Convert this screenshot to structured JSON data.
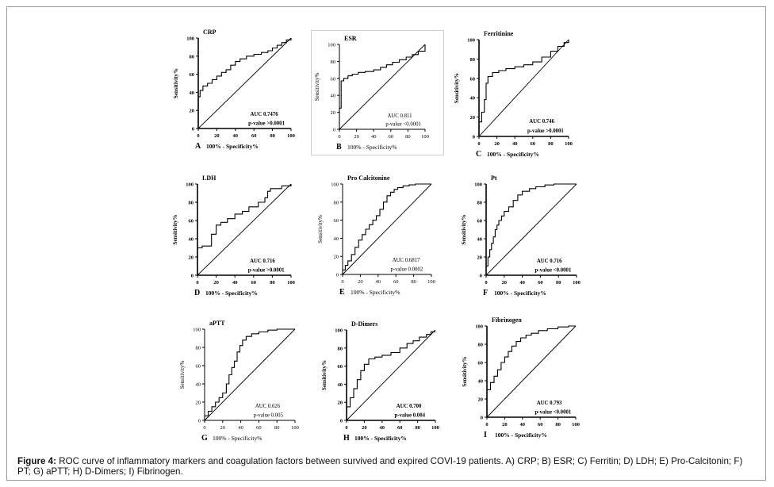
{
  "caption": {
    "label": "Figure 4:",
    "text": "ROC curve of inflammatory markers and coagulation factors between survived and expired COVI-19 patients. A) CRP; B) ESR; C) Ferritin; D) LDH; E) Pro-Calcitonin; F) PT; G) aPTT; H) D-Dimers; I) Fibrinogen."
  },
  "chart_data": [
    {
      "type": "line",
      "letter": "A",
      "title": "CRP",
      "xlabel": "100% - Specificity%",
      "ylabel": "Sensitivity%",
      "auc_text": "AUC 0.7476",
      "p_text": "p-value >0.0001",
      "xlim": [
        0,
        100
      ],
      "ylim": [
        0,
        100
      ],
      "ticks": [
        "0",
        "20",
        "40",
        "60",
        "80",
        "100"
      ],
      "x": [
        0,
        0,
        2,
        2,
        5,
        5,
        10,
        10,
        15,
        15,
        20,
        20,
        25,
        25,
        30,
        30,
        35,
        35,
        40,
        40,
        45,
        45,
        52,
        52,
        60,
        60,
        68,
        68,
        75,
        75,
        80,
        80,
        85,
        85,
        90,
        90,
        95,
        95,
        100,
        100
      ],
      "y": [
        0,
        35,
        35,
        42,
        42,
        47,
        47,
        50,
        50,
        54,
        54,
        58,
        58,
        62,
        62,
        65,
        65,
        70,
        70,
        74,
        74,
        77,
        77,
        80,
        80,
        82,
        82,
        84,
        84,
        86,
        86,
        89,
        89,
        92,
        92,
        95,
        95,
        98,
        98,
        100
      ]
    },
    {
      "type": "line",
      "letter": "B",
      "title": "ESR",
      "xlabel": "100% - Specificity%",
      "ylabel": "Sensitivity%",
      "auc_text": "AUC 0.811",
      "p_text": "p-value <0.0001",
      "xlim": [
        0,
        100
      ],
      "ylim": [
        0,
        100
      ],
      "ticks": [
        "0",
        "20",
        "40",
        "60",
        "80",
        "100"
      ],
      "x": [
        0,
        0,
        2,
        2,
        5,
        5,
        10,
        10,
        15,
        15,
        22,
        22,
        30,
        30,
        40,
        40,
        48,
        48,
        55,
        55,
        62,
        62,
        70,
        70,
        78,
        78,
        85,
        85,
        92,
        92,
        100,
        100
      ],
      "y": [
        0,
        25,
        25,
        57,
        57,
        60,
        60,
        63,
        63,
        65,
        65,
        67,
        67,
        68,
        68,
        70,
        70,
        73,
        73,
        76,
        76,
        79,
        79,
        82,
        82,
        85,
        85,
        88,
        88,
        92,
        92,
        100
      ]
    },
    {
      "type": "line",
      "letter": "C",
      "title": "Ferritinine",
      "xlabel": "100% - Specificity%",
      "ylabel": "Sensitivity%",
      "auc_text": "AUC 0.746",
      "p_text": "p-value >0.0001",
      "xlim": [
        0,
        100
      ],
      "ylim": [
        0,
        100
      ],
      "ticks": [
        "0",
        "20",
        "40",
        "60",
        "80",
        "100"
      ],
      "x": [
        0,
        0,
        3,
        3,
        6,
        6,
        8,
        8,
        10,
        10,
        15,
        15,
        22,
        22,
        30,
        30,
        40,
        40,
        50,
        50,
        60,
        60,
        70,
        70,
        80,
        80,
        88,
        88,
        95,
        95,
        100,
        100
      ],
      "y": [
        0,
        15,
        15,
        25,
        25,
        38,
        38,
        55,
        55,
        62,
        62,
        66,
        66,
        68,
        68,
        70,
        70,
        72,
        72,
        74,
        74,
        77,
        77,
        82,
        82,
        88,
        88,
        93,
        93,
        97,
        97,
        100
      ]
    },
    {
      "type": "line",
      "letter": "D",
      "title": "LDH",
      "xlabel": "100% - Specificity%",
      "ylabel": "Sensitivity%",
      "auc_text": "AUC 0.716",
      "p_text": "p-value >0.0001",
      "xlim": [
        0,
        100
      ],
      "ylim": [
        0,
        100
      ],
      "ticks": [
        "0",
        "20",
        "40",
        "60",
        "80",
        "100"
      ],
      "x": [
        0,
        0,
        5,
        5,
        15,
        15,
        20,
        20,
        25,
        25,
        32,
        32,
        40,
        40,
        48,
        48,
        55,
        55,
        65,
        65,
        72,
        72,
        75,
        75,
        78,
        78,
        90,
        90,
        100,
        100
      ],
      "y": [
        0,
        30,
        30,
        32,
        32,
        45,
        45,
        55,
        55,
        58,
        58,
        62,
        62,
        67,
        67,
        70,
        70,
        75,
        75,
        80,
        80,
        85,
        85,
        92,
        92,
        95,
        95,
        98,
        98,
        100
      ]
    },
    {
      "type": "line",
      "letter": "E",
      "title": "Pro Calcitonine",
      "xlabel": "100% - Specificity%",
      "ylabel": "Sensitivity%",
      "auc_text": "AUC 0.6817",
      "p_text": "p-value 0.0002",
      "xlim": [
        0,
        100
      ],
      "ylim": [
        0,
        100
      ],
      "ticks": [
        "0",
        "20",
        "40",
        "60",
        "80",
        "100"
      ],
      "x": [
        0,
        0,
        3,
        3,
        6,
        6,
        10,
        10,
        14,
        14,
        18,
        18,
        22,
        22,
        26,
        26,
        30,
        30,
        34,
        34,
        38,
        38,
        42,
        42,
        46,
        46,
        50,
        50,
        54,
        54,
        58,
        58,
        62,
        62,
        68,
        68,
        75,
        75,
        82,
        82,
        90,
        90,
        100
      ],
      "y": [
        0,
        5,
        5,
        10,
        10,
        15,
        15,
        22,
        22,
        30,
        30,
        38,
        38,
        44,
        44,
        50,
        50,
        55,
        55,
        60,
        60,
        65,
        65,
        72,
        72,
        80,
        80,
        87,
        87,
        91,
        91,
        94,
        94,
        96,
        96,
        98,
        98,
        99,
        99,
        100,
        100,
        100,
        100
      ]
    },
    {
      "type": "line",
      "letter": "F",
      "title": "Pt",
      "xlabel": "100% - Specificity%",
      "ylabel": "Sensitivity%",
      "auc_text": "AUC 0.716",
      "p_text": "p-value <0.0001",
      "xlim": [
        0,
        100
      ],
      "ylim": [
        0,
        100
      ],
      "ticks": [
        "0",
        "20",
        "40",
        "60",
        "80",
        "100"
      ],
      "x": [
        0,
        0,
        2,
        2,
        4,
        4,
        6,
        6,
        8,
        8,
        10,
        10,
        12,
        12,
        14,
        14,
        17,
        17,
        20,
        20,
        25,
        25,
        30,
        30,
        35,
        35,
        40,
        40,
        48,
        48,
        55,
        55,
        65,
        65,
        75,
        75,
        100
      ],
      "y": [
        0,
        10,
        10,
        20,
        20,
        28,
        28,
        35,
        35,
        42,
        42,
        50,
        50,
        55,
        55,
        60,
        60,
        65,
        65,
        70,
        70,
        75,
        75,
        82,
        82,
        88,
        88,
        92,
        92,
        95,
        95,
        97,
        97,
        99,
        99,
        100,
        100
      ]
    },
    {
      "type": "line",
      "letter": "G",
      "title": "aPTT",
      "xlabel": "100% - Specificity%",
      "ylabel": "Sensitivity%",
      "auc_text": "AUC 0.626",
      "p_text": "p-value 0.005",
      "xlim": [
        0,
        100
      ],
      "ylim": [
        0,
        100
      ],
      "ticks": [
        "0",
        "20",
        "40",
        "60",
        "80",
        "100"
      ],
      "x": [
        0,
        0,
        4,
        4,
        8,
        8,
        12,
        12,
        16,
        16,
        20,
        20,
        24,
        24,
        27,
        27,
        30,
        30,
        33,
        33,
        36,
        36,
        39,
        39,
        42,
        42,
        46,
        46,
        52,
        52,
        60,
        60,
        70,
        70,
        80,
        80,
        90,
        90,
        100
      ],
      "y": [
        0,
        5,
        5,
        10,
        10,
        15,
        15,
        20,
        20,
        25,
        25,
        30,
        30,
        40,
        40,
        50,
        50,
        58,
        58,
        65,
        65,
        75,
        75,
        82,
        82,
        88,
        88,
        92,
        92,
        95,
        95,
        97,
        97,
        99,
        99,
        100,
        100,
        100,
        100
      ]
    },
    {
      "type": "line",
      "letter": "H",
      "title": "D-Dimers",
      "xlabel": "100% - Specificity%",
      "ylabel": "Sensitivity%",
      "auc_text": "AUC 0.700",
      "p_text": "p-value 0.004",
      "xlim": [
        0,
        100
      ],
      "ylim": [
        0,
        100
      ],
      "ticks": [
        "0",
        "20",
        "40",
        "60",
        "80",
        "100"
      ],
      "x": [
        0,
        0,
        4,
        4,
        8,
        8,
        12,
        12,
        16,
        16,
        20,
        20,
        25,
        25,
        32,
        32,
        40,
        40,
        50,
        50,
        60,
        60,
        68,
        68,
        75,
        75,
        82,
        82,
        90,
        90,
        95,
        95,
        100
      ],
      "y": [
        0,
        15,
        15,
        25,
        25,
        35,
        35,
        45,
        45,
        55,
        55,
        62,
        62,
        68,
        68,
        70,
        70,
        72,
        72,
        75,
        75,
        80,
        80,
        85,
        85,
        88,
        88,
        92,
        92,
        95,
        95,
        98,
        98
      ]
    },
    {
      "type": "line",
      "letter": "I",
      "title": "Fibrinogen",
      "xlabel": "100% - Specificity%",
      "ylabel": "Sensitivity%",
      "auc_text": "AUC 0.793",
      "p_text": "p-value <0.0001",
      "xlim": [
        0,
        100
      ],
      "ylim": [
        0,
        100
      ],
      "ticks": [
        "0",
        "20",
        "40",
        "60",
        "80",
        "100"
      ],
      "x": [
        0,
        0,
        4,
        4,
        8,
        8,
        12,
        12,
        16,
        16,
        20,
        20,
        24,
        24,
        28,
        28,
        33,
        33,
        38,
        38,
        44,
        44,
        50,
        50,
        58,
        58,
        68,
        68,
        80,
        80,
        92,
        92,
        100
      ],
      "y": [
        0,
        30,
        30,
        38,
        38,
        45,
        45,
        52,
        52,
        60,
        60,
        66,
        66,
        72,
        72,
        78,
        78,
        83,
        83,
        87,
        87,
        90,
        90,
        92,
        92,
        95,
        95,
        97,
        97,
        99,
        99,
        100,
        100
      ]
    }
  ]
}
